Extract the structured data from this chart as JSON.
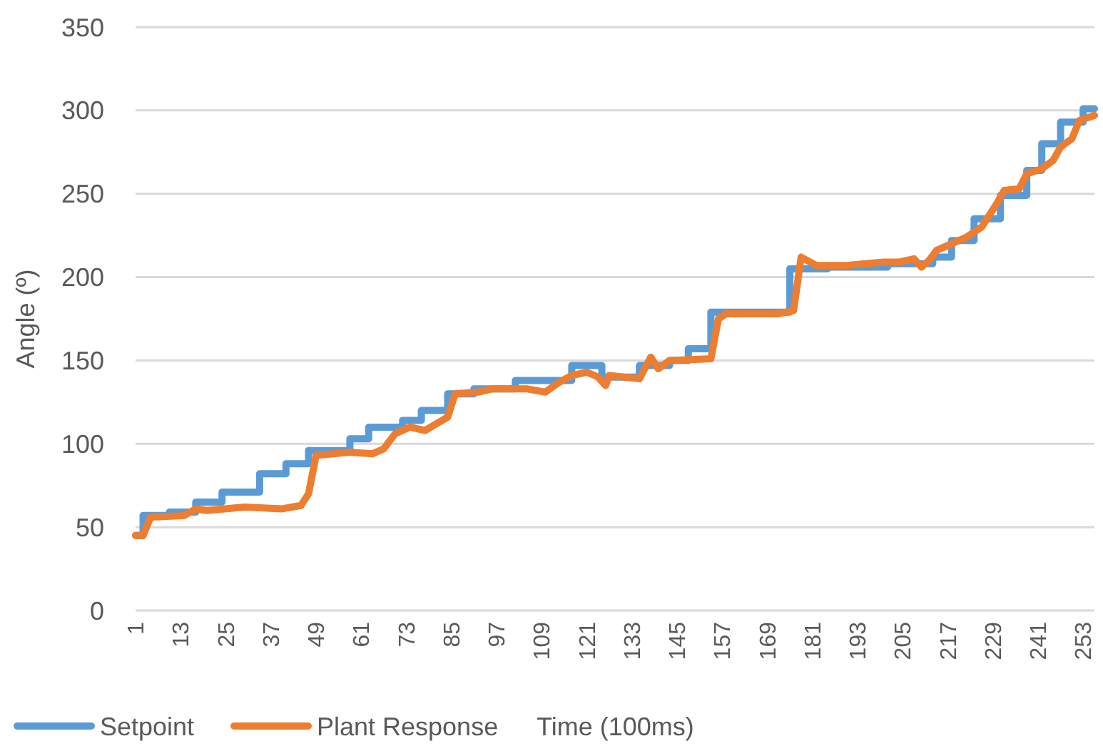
{
  "chart_data": {
    "type": "line",
    "xlabel": "Time (100ms)",
    "ylabel": "Angle (º)",
    "xlim": [
      1,
      256
    ],
    "ylim": [
      0,
      350
    ],
    "yticks": [
      0,
      50,
      100,
      150,
      200,
      250,
      300,
      350
    ],
    "xticks": [
      1,
      13,
      25,
      37,
      49,
      61,
      73,
      85,
      97,
      109,
      121,
      133,
      145,
      157,
      169,
      181,
      193,
      205,
      217,
      229,
      241,
      253
    ],
    "grid": "y",
    "legend": "bottom",
    "line_style": "solid",
    "marker": "none",
    "series": [
      {
        "name": "Setpoint",
        "color": "#5b9bd5",
        "x": [
          1,
          3,
          3,
          10,
          10,
          17,
          17,
          24,
          24,
          34,
          34,
          41,
          41,
          47,
          47,
          58,
          58,
          63,
          63,
          72,
          72,
          77,
          77,
          84,
          84,
          91,
          91,
          102,
          102,
          117,
          117,
          125,
          125,
          135,
          135,
          143,
          143,
          148,
          148,
          154,
          154,
          175,
          175,
          185,
          185,
          201,
          201,
          213,
          213,
          218,
          218,
          224,
          224,
          231,
          231,
          238,
          238,
          242,
          242,
          247,
          247,
          253,
          253,
          256
        ],
        "values": [
          45,
          45,
          57,
          57,
          59,
          59,
          65,
          65,
          71,
          71,
          82,
          82,
          88,
          88,
          96,
          96,
          103,
          103,
          110,
          110,
          114,
          114,
          120,
          120,
          130,
          130,
          133,
          133,
          138,
          138,
          147,
          147,
          140,
          140,
          147,
          147,
          150,
          150,
          157,
          157,
          179,
          179,
          205,
          205,
          206,
          206,
          208,
          208,
          212,
          212,
          222,
          222,
          235,
          235,
          249,
          249,
          264,
          264,
          280,
          280,
          293,
          293,
          301,
          301
        ]
      },
      {
        "name": "Plant Response",
        "color": "#ed7d31",
        "x": [
          1,
          3,
          5,
          14,
          17,
          20,
          30,
          40,
          45,
          47,
          49,
          58,
          64,
          67,
          70,
          74,
          78,
          84,
          86,
          92,
          96,
          105,
          110,
          113,
          117,
          121,
          124,
          126,
          127,
          135,
          138,
          140,
          143,
          154,
          156,
          158,
          165,
          172,
          176,
          178,
          182,
          190,
          200,
          204,
          208,
          210,
          212,
          214,
          218,
          222,
          226,
          230,
          232,
          236,
          238,
          242,
          245,
          247,
          250,
          252,
          256
        ],
        "values": [
          45,
          45,
          56,
          57,
          61,
          60,
          62,
          61,
          63,
          70,
          93,
          95,
          94,
          97,
          106,
          110,
          108,
          116,
          130,
          131,
          133,
          133,
          131,
          136,
          141,
          143,
          140,
          135,
          141,
          139,
          152,
          145,
          150,
          151,
          175,
          178,
          178,
          178,
          180,
          212,
          207,
          207,
          209,
          209,
          211,
          206,
          210,
          216,
          220,
          224,
          230,
          244,
          252,
          253,
          262,
          265,
          270,
          278,
          283,
          294,
          297
        ]
      }
    ]
  }
}
